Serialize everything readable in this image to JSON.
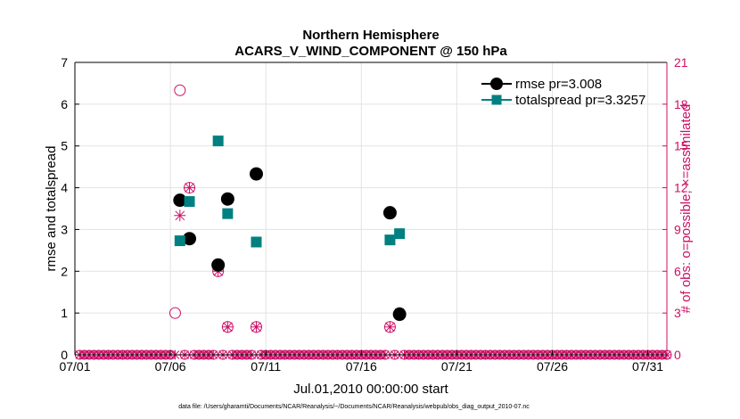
{
  "chart_data": {
    "type": "scatter",
    "title": "Northern Hemisphere",
    "subtitle": "ACARS_V_WIND_COMPONENT @ 150 hPa",
    "xlabel": "Jul.01,2010 00:00:00 start",
    "ylabel_left": "rmse and totalspread",
    "ylabel_right": "# of obs: o=possible; ×=assimilated",
    "footnote": "data file: /Users/gharamti/Documents/NCAR/Reanalysis/~/Documents/NCAR/Reanalysis/webpub/obs_diag_output_2010-07.nc",
    "x_range": [
      1,
      32
    ],
    "ylim_left": [
      0,
      7
    ],
    "ylim_right": [
      0,
      21
    ],
    "x_ticks": [
      1,
      6,
      11,
      16,
      21,
      26,
      31
    ],
    "x_tick_labels": [
      "07/01",
      "07/06",
      "07/11",
      "07/16",
      "07/21",
      "07/26",
      "07/31"
    ],
    "y_ticks_left": [
      "0",
      "1",
      "2",
      "3",
      "4",
      "5",
      "6",
      "7"
    ],
    "y_ticks_right": [
      "0",
      "3",
      "6",
      "9",
      "12",
      "15",
      "18",
      "21"
    ],
    "grid": true,
    "legend_position": "top-right",
    "colors": {
      "rmse": "#000000",
      "totalspread": "#008080",
      "obs": "#cc1166"
    },
    "series": [
      {
        "name": "rmse pr=3.008",
        "marker": "circle",
        "points": [
          [
            6.5,
            3.7
          ],
          [
            7.0,
            2.78
          ],
          [
            8.5,
            2.15
          ],
          [
            9.0,
            3.73
          ],
          [
            10.5,
            4.33
          ],
          [
            17.5,
            3.4
          ],
          [
            18.0,
            0.97
          ]
        ]
      },
      {
        "name": "totalspread pr=3.3257",
        "marker": "square",
        "points": [
          [
            6.5,
            2.73
          ],
          [
            7.0,
            3.67
          ],
          [
            8.5,
            5.12
          ],
          [
            9.0,
            3.38
          ],
          [
            10.5,
            2.7
          ],
          [
            17.5,
            2.75
          ],
          [
            18.0,
            2.9
          ]
        ]
      }
    ],
    "obs_possible": [
      [
        6.25,
        3
      ],
      [
        6.5,
        19
      ],
      [
        7.0,
        12
      ],
      [
        8.5,
        6
      ],
      [
        9.0,
        2
      ],
      [
        10.5,
        2
      ],
      [
        17.5,
        2
      ],
      [
        18.0,
        3
      ]
    ],
    "obs_assimilated": [
      [
        6.5,
        10
      ],
      [
        7.0,
        12
      ],
      [
        8.5,
        6
      ],
      [
        9.0,
        2
      ],
      [
        10.5,
        2
      ],
      [
        17.5,
        2
      ],
      [
        18.0,
        3
      ]
    ]
  }
}
